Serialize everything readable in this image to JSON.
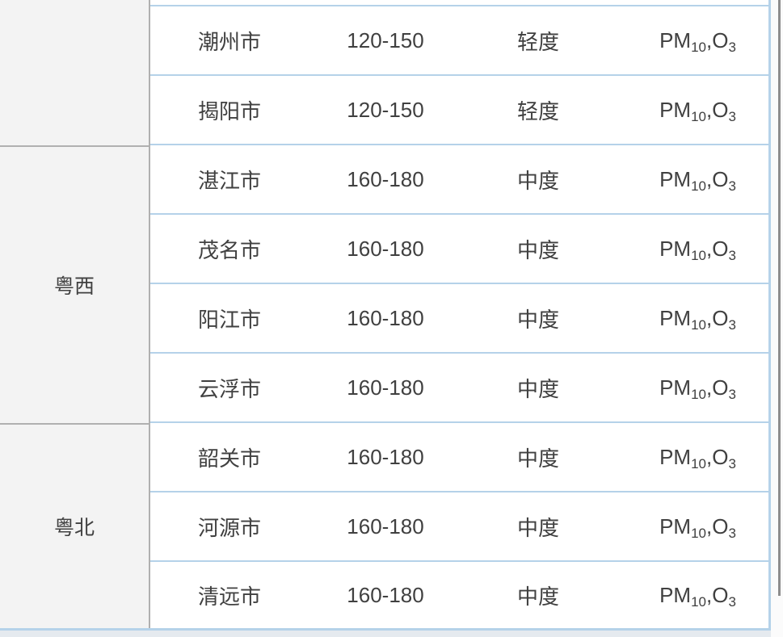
{
  "table": {
    "groups": [
      {
        "region": "",
        "rows": [
          {
            "city": "潮州市",
            "range": "120-150",
            "level": "轻度",
            "pollutants": "PM10,O3"
          },
          {
            "city": "揭阳市",
            "range": "120-150",
            "level": "轻度",
            "pollutants": "PM10,O3"
          }
        ]
      },
      {
        "region": "粤西",
        "rows": [
          {
            "city": "湛江市",
            "range": "160-180",
            "level": "中度",
            "pollutants": "PM10,O3"
          },
          {
            "city": "茂名市",
            "range": "160-180",
            "level": "中度",
            "pollutants": "PM10,O3"
          },
          {
            "city": "阳江市",
            "range": "160-180",
            "level": "中度",
            "pollutants": "PM10,O3"
          },
          {
            "city": "云浮市",
            "range": "160-180",
            "level": "中度",
            "pollutants": "PM10,O3"
          }
        ]
      },
      {
        "region": "粤北",
        "rows": [
          {
            "city": "韶关市",
            "range": "160-180",
            "level": "中度",
            "pollutants": "PM10,O3"
          },
          {
            "city": "河源市",
            "range": "160-180",
            "level": "中度",
            "pollutants": "PM10,O3"
          },
          {
            "city": "清远市",
            "range": "160-180",
            "level": "中度",
            "pollutants": "PM10,O3"
          }
        ]
      }
    ]
  },
  "pollutant_parts": {
    "pm": "PM",
    "pm_sub": "10",
    "separator": ",",
    "o": "O",
    "o_sub": "3"
  },
  "colors": {
    "row_border_blue": "#b5d2e9",
    "divider_gray": "#b0b0b0",
    "region_bg": "#f3f3f3",
    "text": "#404040",
    "below_table_band": "#e5eaef",
    "scrollbar_thumb": "#8d8d8d"
  }
}
